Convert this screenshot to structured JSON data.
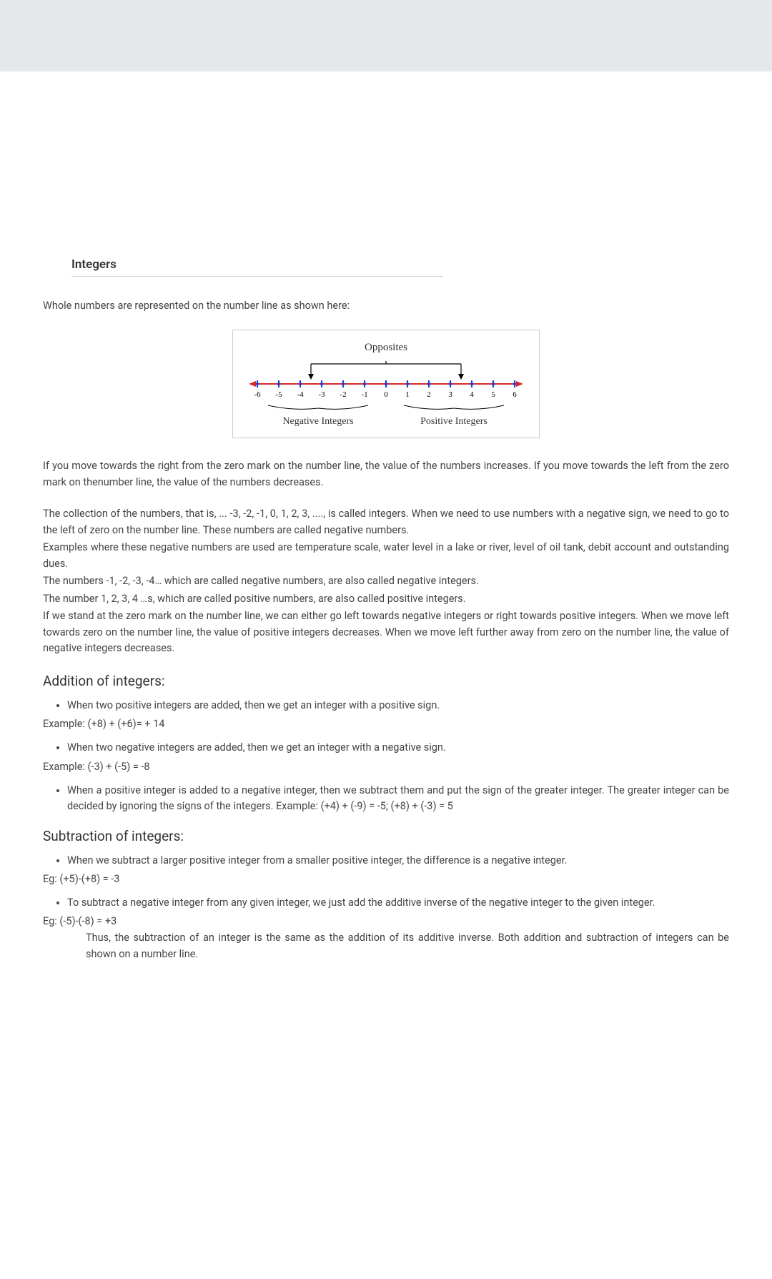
{
  "title": "Integers",
  "intro": "Whole numbers are represented on the number line as shown here:",
  "numberLine": {
    "oppositesLabel": "Opposites",
    "ticks": [
      "-6",
      "-5",
      "-4",
      "-3",
      "-2",
      "-1",
      "0",
      "1",
      "2",
      "3",
      "4",
      "5",
      "6"
    ],
    "negativeLabel": "Negative Integers",
    "positiveLabel": "Positive Integers",
    "lineColor": "#d62728",
    "tickColor": "#1f3fd6",
    "arrowColor": "#000000"
  },
  "para1": "If you move towards the right from the zero mark on the number line, the value of the numbers increases.   If you move towards the left from the zero mark on thenumber line, the value of the numbers decreases.",
  "para2a": "The collection of the numbers, that is, ... -3, -2, -1, 0, 1, 2, 3, ...., is called integers. When we need to use numbers with a negative sign, we need to go to the left of zero on the number line.   These numbers are called negative numbers.",
  "para2b": "Examples where these negative numbers are used are temperature scale, water level in a lake or river, level of oil tank, debit account and outstanding dues.",
  "para2c": "The numbers -1, -2, -3, -4… which are called negative numbers, are also called negative integers.",
  "para2d": "The number 1, 2, 3, 4 …s, which are called positive numbers, are also called positive integers.",
  "para2e": "If we stand at the zero mark on the number line, we can either go left towards negative integers or right towards positive integers.   When we move left towards zero on the number line, the value of positive integers decreases.  When we move left further away from zero on the number line, the value of negative integers decreases.",
  "addition": {
    "heading": "Addition of integers:",
    "bullet1": "When two positive integers are added, then we get an integer with a positive sign.",
    "example1": "Example: (+8) + (+6)= + 14",
    "bullet2": "When two negative integers are added, then we get an integer with a negative sign.",
    "example2": "Example: (-3) + (-5) = -8",
    "bullet3": "When a positive integer is added to a negative integer, then we subtract them and put the sign of the greater integer.   The greater integer can be decided by ignoring the signs of the integers. Example:  (+4) + (-9) = -5; (+8) + (-3) = 5"
  },
  "subtraction": {
    "heading": "Subtraction of integers:",
    "bullet1": "When we subtract a larger positive integer from a smaller positive integer, the difference is a negative integer.",
    "example1": "Eg: (+5)-(+8) = -3",
    "bullet2": "To subtract a negative integer from any given integer, we just add the additive inverse of the negative integer to the given integer.",
    "example2": "Eg:  (-5)-(-8) = +3",
    "conclusion": "Thus, the subtraction of an integer is the same as the addition of its additive inverse.  Both addition and subtraction of integers can be shown on a number line."
  }
}
